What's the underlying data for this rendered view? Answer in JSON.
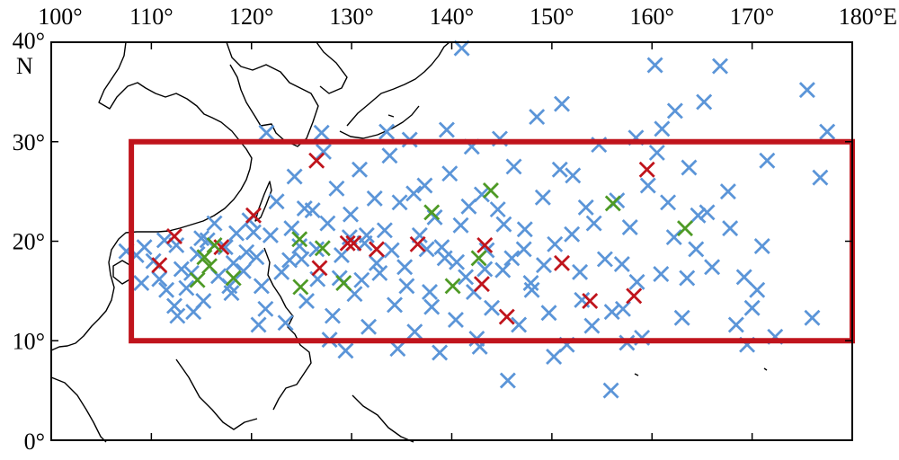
{
  "map": {
    "lon_range": [
      100,
      180
    ],
    "lat_range": [
      0,
      40
    ],
    "x_ticks": [
      {
        "value": 100,
        "label": "100°"
      },
      {
        "value": 110,
        "label": "110°"
      },
      {
        "value": 120,
        "label": "120°"
      },
      {
        "value": 130,
        "label": "130°"
      },
      {
        "value": 140,
        "label": "140°"
      },
      {
        "value": 150,
        "label": "150°"
      },
      {
        "value": 160,
        "label": "160°"
      },
      {
        "value": 170,
        "label": "170°"
      },
      {
        "value": 180,
        "label": "180°E"
      }
    ],
    "y_ticks": [
      {
        "value": 0,
        "label": "0°"
      },
      {
        "value": 10,
        "label": "10°"
      },
      {
        "value": 20,
        "label": "20°"
      },
      {
        "value": 30,
        "label": "30°"
      },
      {
        "value": 40,
        "label": "40°"
      }
    ],
    "y_unit": "N",
    "region_box": {
      "lon": [
        108,
        180
      ],
      "lat": [
        10,
        30
      ],
      "color": "#c0141c"
    },
    "colors": {
      "blue": "#5b95d8",
      "red": "#c0141c",
      "green": "#4e9a25",
      "coast": "#000000"
    },
    "marker": "x-cross"
  },
  "chart_data": {
    "type": "scatter",
    "title": "",
    "xlabel": "",
    "ylabel": "",
    "xlim": [
      100,
      180
    ],
    "ylim": [
      0,
      40
    ],
    "grid": false,
    "series": [
      {
        "color": "#5b95d8",
        "points": [
          [
            107.5,
            19
          ],
          [
            108.5,
            18.6
          ],
          [
            109.3,
            19.4
          ],
          [
            110.2,
            18
          ],
          [
            110.8,
            16.2
          ],
          [
            111.5,
            15.1
          ],
          [
            112.3,
            13.5
          ],
          [
            112.6,
            12.5
          ],
          [
            113,
            17.2
          ],
          [
            113.5,
            15.3
          ],
          [
            114,
            16.8
          ],
          [
            114.6,
            18.7
          ],
          [
            115.2,
            14
          ],
          [
            115.6,
            20.1
          ],
          [
            116.3,
            21.8
          ],
          [
            116.7,
            16.5
          ],
          [
            117.4,
            19.4
          ],
          [
            118,
            14.8
          ],
          [
            118.5,
            20.8
          ],
          [
            119.2,
            17
          ],
          [
            119.8,
            22.1
          ],
          [
            120.5,
            18.4
          ],
          [
            121,
            15.5
          ],
          [
            121.4,
            13.2
          ],
          [
            121.9,
            20.6
          ],
          [
            122.5,
            24
          ],
          [
            123,
            16.9
          ],
          [
            123.4,
            11.8
          ],
          [
            124,
            21.3
          ],
          [
            124.3,
            26.5
          ],
          [
            125,
            18.2
          ],
          [
            125.5,
            14
          ],
          [
            126.1,
            23.1
          ],
          [
            126.6,
            16.2
          ],
          [
            127.2,
            29
          ],
          [
            127.6,
            21.8
          ],
          [
            128.1,
            12.5
          ],
          [
            128.5,
            25.3
          ],
          [
            129,
            18.6
          ],
          [
            129.4,
            9
          ],
          [
            129.9,
            22.7
          ],
          [
            130.3,
            14.7
          ],
          [
            130.8,
            27.2
          ],
          [
            131.3,
            19.8
          ],
          [
            131.7,
            11.4
          ],
          [
            132.3,
            24.3
          ],
          [
            132.8,
            16.8
          ],
          [
            133.3,
            21.1
          ],
          [
            133.8,
            28.6
          ],
          [
            134.3,
            13.6
          ],
          [
            134.8,
            23.9
          ],
          [
            135.3,
            17.4
          ],
          [
            135.8,
            30.2
          ],
          [
            136.3,
            10.9
          ],
          [
            136.8,
            20.6
          ],
          [
            137.3,
            25.6
          ],
          [
            137.8,
            14.9
          ],
          [
            138.3,
            22.4
          ],
          [
            138.8,
            8.8
          ],
          [
            139.3,
            18.3
          ],
          [
            139.8,
            26.8
          ],
          [
            140.4,
            12.1
          ],
          [
            140.9,
            21.6
          ],
          [
            141.4,
            16.4
          ],
          [
            142,
            29.5
          ],
          [
            142.5,
            10.2
          ],
          [
            143,
            24.7
          ],
          [
            143.5,
            19.1
          ],
          [
            144,
            13.3
          ],
          [
            144.6,
            23.2
          ],
          [
            145.1,
            17.1
          ],
          [
            145.6,
            6
          ],
          [
            146.2,
            27.5
          ],
          [
            146.7,
            11.6
          ],
          [
            147.3,
            21.2
          ],
          [
            147.9,
            15.8
          ],
          [
            148.5,
            32.5
          ],
          [
            149.1,
            24.4
          ],
          [
            149.7,
            12.8
          ],
          [
            150.3,
            19.7
          ],
          [
            151,
            33.8
          ],
          [
            151.5,
            9.6
          ],
          [
            152.1,
            26.6
          ],
          [
            152.8,
            16.9
          ],
          [
            153.4,
            23.4
          ],
          [
            154,
            11.5
          ],
          [
            154.7,
            29.7
          ],
          [
            155.3,
            18.2
          ],
          [
            155.9,
            5
          ],
          [
            156.5,
            24.1
          ],
          [
            157.1,
            13.2
          ],
          [
            157.8,
            21.4
          ],
          [
            158.4,
            30.4
          ],
          [
            159,
            10.3
          ],
          [
            159.6,
            25.6
          ],
          [
            160.3,
            37.7
          ],
          [
            160.9,
            16.7
          ],
          [
            161.6,
            23.9
          ],
          [
            162.3,
            33.1
          ],
          [
            163,
            12.3
          ],
          [
            163.7,
            27.4
          ],
          [
            164.4,
            19.2
          ],
          [
            165.2,
            34
          ],
          [
            166,
            17.4
          ],
          [
            166.8,
            37.6
          ],
          [
            167.6,
            25
          ],
          [
            168.4,
            11.6
          ],
          [
            169.2,
            16.4
          ],
          [
            170,
            13.3
          ],
          [
            171,
            19.5
          ],
          [
            171.5,
            28.1
          ],
          [
            172.3,
            10.4
          ],
          [
            175.5,
            35.2
          ],
          [
            176,
            12.3
          ],
          [
            176.8,
            26.4
          ],
          [
            177.5,
            31
          ],
          [
            112.5,
            19.6
          ],
          [
            118.2,
            17.8
          ],
          [
            124.8,
            19.5
          ],
          [
            128.8,
            16.3
          ],
          [
            131.5,
            20.6
          ],
          [
            135.5,
            15.5
          ],
          [
            137.5,
            19.2
          ],
          [
            140.5,
            17.9
          ],
          [
            145.2,
            21.7
          ],
          [
            149.2,
            17.6
          ],
          [
            154.2,
            21.8
          ],
          [
            158.5,
            15.9
          ],
          [
            162.2,
            20.4
          ],
          [
            115,
            20.3
          ],
          [
            120.2,
            20.9
          ],
          [
            126.5,
            19.2
          ],
          [
            132.5,
            17.8
          ],
          [
            138,
            13.4
          ],
          [
            142.2,
            14.9
          ],
          [
            147.2,
            19.2
          ],
          [
            153,
            14.1
          ],
          [
            160.5,
            28.9
          ],
          [
            165.5,
            22.9
          ],
          [
            169.5,
            9.6
          ],
          [
            111.3,
            20.1
          ],
          [
            117.8,
            15.5
          ],
          [
            123.8,
            18.1
          ],
          [
            129.8,
            20.4
          ],
          [
            134,
            19.1
          ],
          [
            139,
            19.4
          ],
          [
            143.3,
            17.2
          ],
          [
            148,
            15.1
          ],
          [
            152,
            20.7
          ],
          [
            157,
            17.7
          ],
          [
            163.5,
            16.3
          ],
          [
            167.8,
            21.3
          ],
          [
            119.5,
            18.9
          ],
          [
            125.3,
            23.3
          ],
          [
            131,
            16.1
          ],
          [
            136.2,
            24.8
          ],
          [
            141.7,
            23.5
          ],
          [
            146,
            18.3
          ],
          [
            150.8,
            27.2
          ],
          [
            156,
            12.9
          ],
          [
            161,
            31.3
          ],
          [
            121.5,
            30.9
          ],
          [
            127,
            30.9
          ],
          [
            133.5,
            31
          ],
          [
            139.5,
            31.2
          ],
          [
            144.8,
            30.3
          ],
          [
            141,
            39.4
          ],
          [
            109,
            15.8
          ],
          [
            114.2,
            12.9
          ],
          [
            120.7,
            11.6
          ],
          [
            127.8,
            10.1
          ],
          [
            134.6,
            9.2
          ],
          [
            142.8,
            9.4
          ],
          [
            150.2,
            8.4
          ],
          [
            157.5,
            9.8
          ],
          [
            164.6,
            22.6
          ],
          [
            170.5,
            15.1
          ]
        ]
      },
      {
        "color": "#c0141c",
        "points": [
          [
            112.3,
            20.5
          ],
          [
            110.8,
            17.6
          ],
          [
            117,
            19.4
          ],
          [
            120.2,
            22.6
          ],
          [
            126.5,
            28.1
          ],
          [
            126.8,
            17.3
          ],
          [
            129.6,
            19.8
          ],
          [
            130.2,
            19.8
          ],
          [
            132.5,
            19.2
          ],
          [
            136.6,
            19.7
          ],
          [
            143.3,
            19.6
          ],
          [
            143,
            15.7
          ],
          [
            145.5,
            12.4
          ],
          [
            151,
            17.8
          ],
          [
            153.8,
            14
          ],
          [
            158.2,
            14.5
          ],
          [
            159.5,
            27.2
          ]
        ]
      },
      {
        "color": "#4e9a25",
        "points": [
          [
            115.3,
            18.4
          ],
          [
            115.8,
            17.5
          ],
          [
            116.3,
            19.6
          ],
          [
            114.6,
            16.1
          ],
          [
            118.2,
            16.3
          ],
          [
            124.8,
            20.2
          ],
          [
            124.9,
            15.4
          ],
          [
            127.1,
            19.3
          ],
          [
            129.2,
            15.8
          ],
          [
            138,
            22.9
          ],
          [
            140.1,
            15.5
          ],
          [
            142.7,
            18.3
          ],
          [
            143.9,
            25.1
          ],
          [
            156.1,
            23.8
          ],
          [
            163.3,
            21.3
          ]
        ]
      }
    ]
  }
}
